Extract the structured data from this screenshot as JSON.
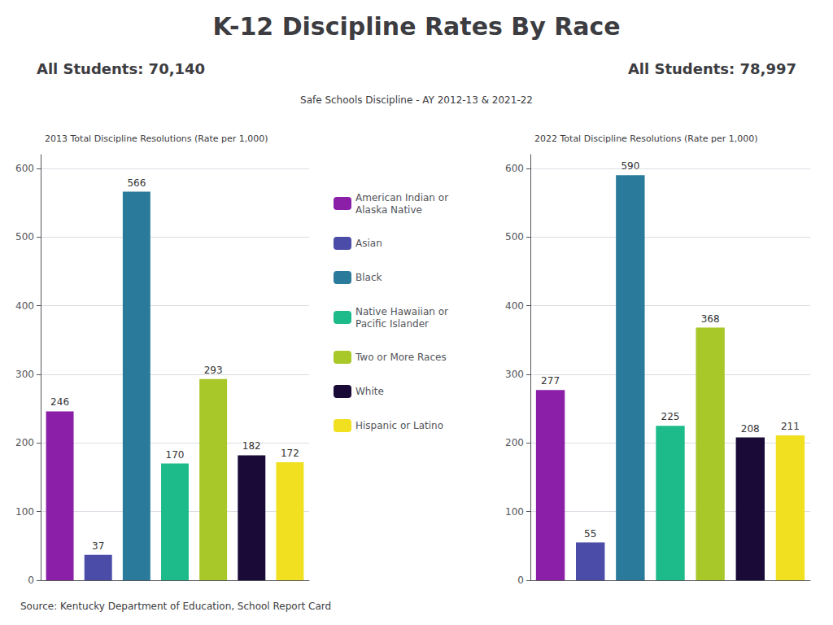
{
  "title": "K-12 Discipline Rates By Race",
  "subtitle": "Safe Schools Discipline - AY 2012-13 & 2021-22",
  "annotations": [
    "Source: Kentucky Department of Education, School Report Card"
  ],
  "chart_data": [
    {
      "type": "bar",
      "title": "2013 Total Discipline Resolutions (Rate per 1,000)",
      "annotations": [
        "All Students: 70,140"
      ],
      "categories": [
        "American Indian or\nAlaska Native",
        "Asian",
        "Black",
        "Native Hawaiian or\nPacific Islander",
        "Two or More Races",
        "White",
        "Hispanic or Latino"
      ],
      "values": [
        246,
        37,
        566,
        170,
        293,
        182,
        172
      ],
      "colors": [
        "#8B1FA8",
        "#4B4BA8",
        "#2A7B9B",
        "#1EBB8A",
        "#A8C728",
        "#1A0A38",
        "#F0E020"
      ],
      "ylim": [
        0,
        620
      ],
      "yticks": [
        0,
        100,
        200,
        300,
        400,
        500,
        600
      ],
      "grid": true,
      "data_labels": true,
      "tick_labels": "y"
    },
    {
      "type": "bar",
      "title": "2022 Total Discipline Resolutions (Rate per 1,000)",
      "annotations": [
        "All Students: 78,997"
      ],
      "categories": [
        "American Indian or\nAlaska Native",
        "Asian",
        "Black",
        "Native Hawaiian or\nPacific Islander",
        "Two or More Races",
        "White",
        "Hispanic or Latino"
      ],
      "values": [
        277,
        55,
        590,
        225,
        368,
        208,
        211
      ],
      "colors": [
        "#8B1FA8",
        "#4B4BA8",
        "#2A7B9B",
        "#1EBB8A",
        "#A8C728",
        "#1A0A38",
        "#F0E020"
      ],
      "ylim": [
        0,
        620
      ],
      "yticks": [
        0,
        100,
        200,
        300,
        400,
        500,
        600
      ],
      "grid": true,
      "data_labels": true,
      "tick_labels": "y"
    }
  ]
}
